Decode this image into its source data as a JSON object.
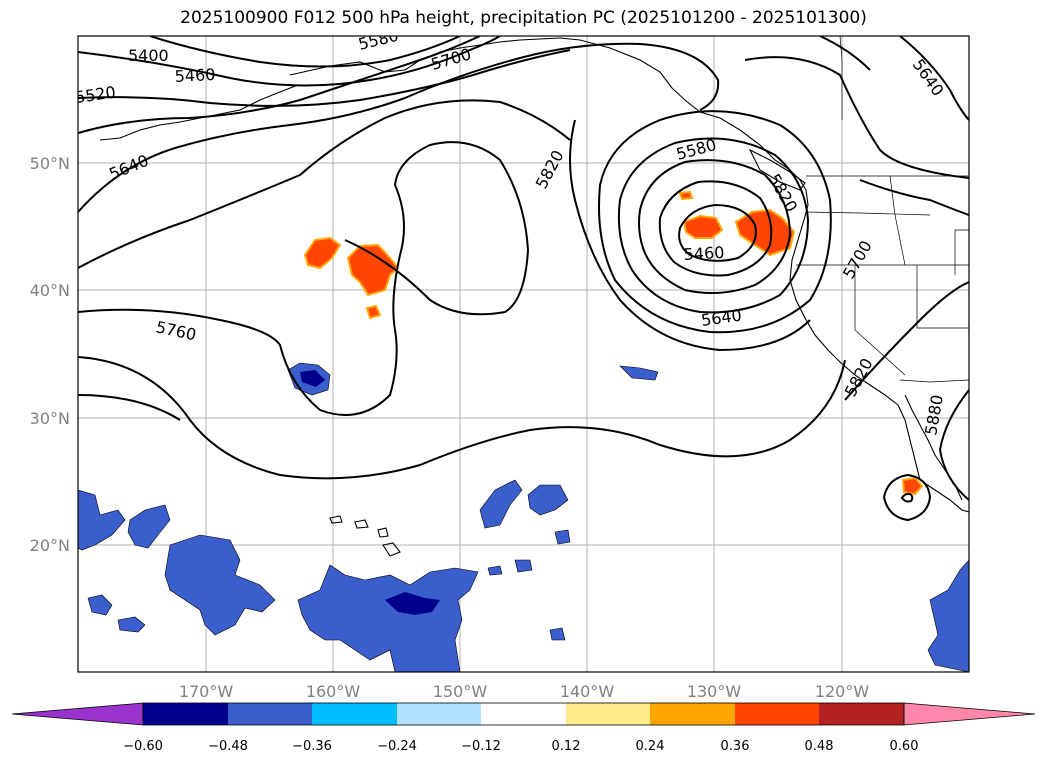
{
  "title": "2025100900 F012 500 hPa height, precipitation PC (2025101200 - 2025101300)",
  "map": {
    "lon_range": [
      -180,
      -110
    ],
    "lat_range": [
      10,
      60
    ],
    "lat_labels": [
      "50°N",
      "40°N",
      "30°N",
      "20°N"
    ],
    "lon_labels": [
      "170°W",
      "160°W",
      "150°W",
      "140°W",
      "130°W",
      "120°W"
    ],
    "gridlines": true,
    "contour_labels": [
      "5400",
      "5460",
      "5520",
      "5580",
      "5640",
      "5700",
      "5760",
      "5820",
      "5820",
      "5580",
      "5460",
      "5640",
      "5700",
      "5820",
      "5880",
      "5640"
    ]
  },
  "colorbar": {
    "ticks": [
      "−0.60",
      "−0.48",
      "−0.36",
      "−0.24",
      "−0.12",
      "0.12",
      "0.24",
      "0.36",
      "0.48",
      "0.60"
    ],
    "colors": [
      "#9933cc",
      "#00008b",
      "#3a5fcd",
      "#00bfff",
      "#b0e2ff",
      "#ffffff",
      "#ffec8b",
      "#ffa500",
      "#ff4500",
      "#b22222",
      "#ff88aa"
    ]
  }
}
